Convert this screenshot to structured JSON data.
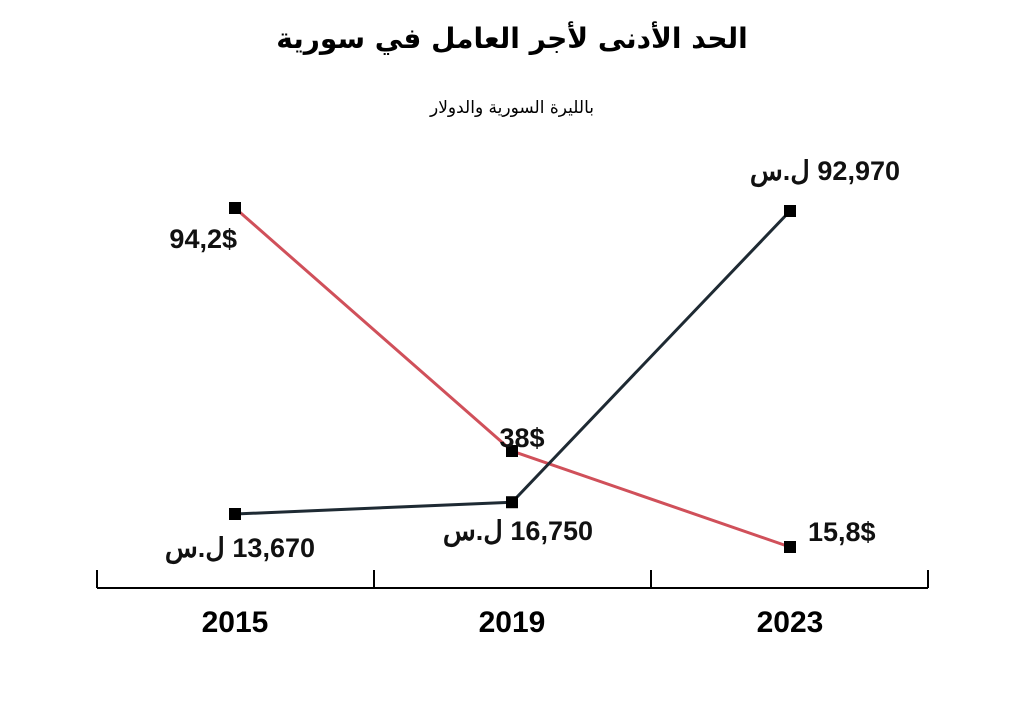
{
  "chart_data": {
    "type": "line",
    "title": "الحد الأدنى لأجر العامل في سورية",
    "subtitle": "بالليرة السورية والدولار",
    "categories": [
      "2015",
      "2019",
      "2023"
    ],
    "series": [
      {
        "key": "usd",
        "values": [
          94.2,
          38,
          15.8
        ],
        "labels": [
          "94,2$",
          "38$",
          "15,8$"
        ],
        "color": "#d0505a"
      },
      {
        "key": "syp",
        "values": [
          13670,
          16750,
          92970
        ],
        "labels": [
          "13,670 ل.س",
          "16,750 ل.س",
          "92,970 ل.س"
        ],
        "color": "#1e2a33"
      }
    ]
  }
}
